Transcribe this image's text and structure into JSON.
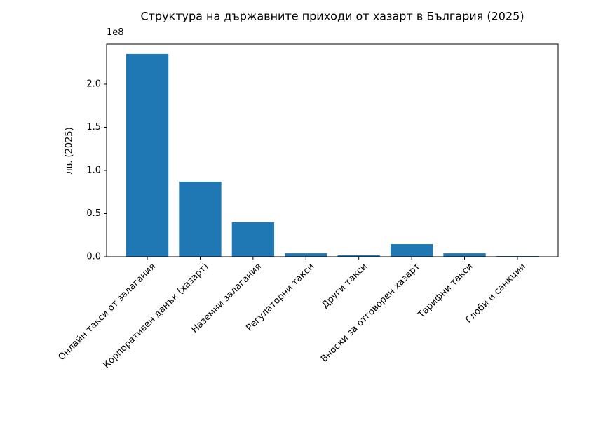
{
  "chart_data": {
    "type": "bar",
    "title": "Структура на държавните приходи от хазарт в България (2025)",
    "ylabel": "лв. (2025)",
    "y_offset_label": "1e8",
    "categories": [
      "Онлайн такси от залагания",
      "Корпоративен данък (хазарт)",
      "Наземни залагания",
      "Регулаторни такси",
      "Други такси",
      "Вноски за отговорен хазарт",
      "Тарифни такси",
      "Глоби и санкции"
    ],
    "values": [
      235000000,
      87000000,
      40000000,
      4000000,
      1600000,
      14600000,
      4000000,
      800000
    ],
    "color": "#1f77b4",
    "ylim": [
      0,
      246300000
    ],
    "yticks": [
      {
        "value": 0,
        "label": "0.0"
      },
      {
        "value": 50000000,
        "label": "0.5"
      },
      {
        "value": 100000000,
        "label": "1.0"
      },
      {
        "value": 150000000,
        "label": "1.5"
      },
      {
        "value": 200000000,
        "label": "2.0"
      }
    ],
    "grid": false
  }
}
